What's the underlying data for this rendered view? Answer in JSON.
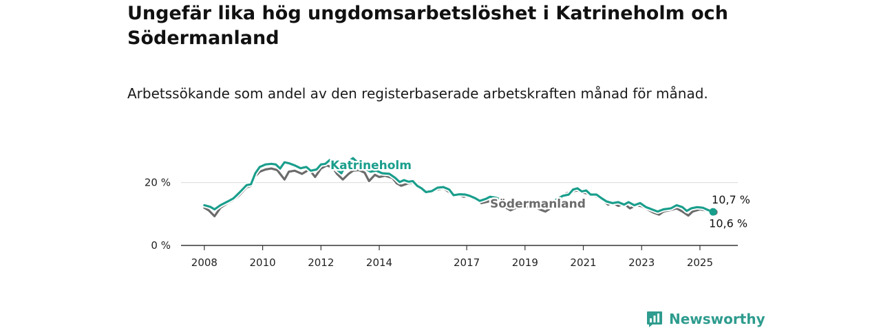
{
  "title": "Ungefär lika hög ungdomsarbetslöshet i Katrineholm och Södermanland",
  "subtitle": "Arbetssökande som andel av den registerbaserade arbetskraften månad för månad.",
  "logo": {
    "text": "Newsworthy",
    "icon": "newsworthy-logo-icon",
    "color": "#2e9c8e"
  },
  "colors": {
    "katrineholm": "#1a9e8c",
    "sodermanland": "#6b6b6b",
    "grid": "#d9d9d9",
    "axis": "#333333"
  },
  "chart_data": {
    "type": "line",
    "title": "Ungefär lika hög ungdomsarbetslöshet i Katrineholm och Södermanland",
    "subtitle": "Arbetssökande som andel av den registerbaserade arbetskraften månad för månad.",
    "xlabel": "",
    "ylabel": "",
    "x_unit": "year",
    "xlim": [
      2007.2,
      2026.3
    ],
    "ylim": [
      0,
      30
    ],
    "y_ticks": [
      {
        "value": 0,
        "label": "0 %"
      },
      {
        "value": 20,
        "label": "20 %"
      }
    ],
    "x_ticks": [
      {
        "value": 2008,
        "label": "2008"
      },
      {
        "value": 2010,
        "label": "2010"
      },
      {
        "value": 2012,
        "label": "2012"
      },
      {
        "value": 2014,
        "label": "2014"
      },
      {
        "value": 2017,
        "label": "2017"
      },
      {
        "value": 2019,
        "label": "2019"
      },
      {
        "value": 2021,
        "label": "2021"
      },
      {
        "value": 2023,
        "label": "2023"
      },
      {
        "value": 2025,
        "label": "2025"
      }
    ],
    "grid": "horizontal",
    "legend": "inline labels",
    "series": [
      {
        "name": "Södermanland",
        "color": "#6b6b6b",
        "label_position": "below-line",
        "end_label": "10,6 %",
        "points": [
          [
            2008.0,
            12.0
          ],
          [
            2008.15,
            11.2
          ],
          [
            2008.35,
            9.3
          ],
          [
            2008.55,
            12.0
          ],
          [
            2008.8,
            13.5
          ],
          [
            2009.0,
            14.5
          ],
          [
            2009.2,
            16.0
          ],
          [
            2009.45,
            18.5
          ],
          [
            2009.6,
            19.0
          ],
          [
            2009.75,
            22.0
          ],
          [
            2009.9,
            23.5
          ],
          [
            2010.1,
            24.2
          ],
          [
            2010.3,
            24.5
          ],
          [
            2010.5,
            24.0
          ],
          [
            2010.6,
            22.8
          ],
          [
            2010.75,
            21.0
          ],
          [
            2010.9,
            23.5
          ],
          [
            2011.1,
            23.8
          ],
          [
            2011.35,
            22.8
          ],
          [
            2011.6,
            24.2
          ],
          [
            2011.8,
            21.8
          ],
          [
            2012.0,
            24.5
          ],
          [
            2012.2,
            25.5
          ],
          [
            2012.4,
            24.8
          ],
          [
            2012.55,
            22.8
          ],
          [
            2012.75,
            21.0
          ],
          [
            2012.95,
            22.8
          ],
          [
            2013.1,
            23.8
          ],
          [
            2013.3,
            24.0
          ],
          [
            2013.5,
            23.2
          ],
          [
            2013.65,
            20.5
          ],
          [
            2013.85,
            22.5
          ],
          [
            2014.0,
            21.8
          ],
          [
            2014.2,
            22.2
          ],
          [
            2014.45,
            21.5
          ],
          [
            2014.6,
            19.8
          ],
          [
            2014.75,
            19.0
          ],
          [
            2015.0,
            19.8
          ],
          [
            2015.2,
            20.0
          ],
          [
            2015.4,
            18.2
          ],
          [
            2015.55,
            16.8
          ],
          [
            2015.75,
            17.5
          ],
          [
            2016.0,
            17.8
          ],
          [
            2016.2,
            18.2
          ],
          [
            2016.4,
            17.0
          ],
          [
            2016.55,
            15.8
          ],
          [
            2016.75,
            16.0
          ],
          [
            2016.9,
            15.5
          ],
          [
            2017.1,
            16.0
          ],
          [
            2017.3,
            14.8
          ],
          [
            2017.5,
            13.5
          ],
          [
            2017.75,
            14.0
          ],
          [
            2017.9,
            14.2
          ],
          [
            2018.2,
            12.8
          ],
          [
            2018.5,
            11.2
          ],
          [
            2018.7,
            12.0
          ],
          [
            2018.9,
            12.5
          ],
          [
            2019.1,
            12.2
          ],
          [
            2019.3,
            12.6
          ],
          [
            2019.5,
            11.5
          ],
          [
            2019.7,
            10.8
          ],
          [
            2019.9,
            12.0
          ],
          [
            2020.15,
            14.0
          ],
          [
            2020.4,
            16.5
          ],
          [
            2020.6,
            17.2
          ],
          [
            2020.8,
            17.5
          ],
          [
            2021.0,
            16.8
          ],
          [
            2021.15,
            16.5
          ],
          [
            2021.35,
            16.0
          ],
          [
            2021.55,
            15.2
          ],
          [
            2021.7,
            14.2
          ],
          [
            2021.85,
            13.0
          ],
          [
            2022.0,
            13.6
          ],
          [
            2022.2,
            12.6
          ],
          [
            2022.4,
            13.3
          ],
          [
            2022.6,
            11.8
          ],
          [
            2022.8,
            12.8
          ],
          [
            2023.0,
            12.5
          ],
          [
            2023.2,
            11.5
          ],
          [
            2023.4,
            10.5
          ],
          [
            2023.6,
            9.8
          ],
          [
            2023.75,
            10.8
          ],
          [
            2024.0,
            11.3
          ],
          [
            2024.2,
            11.8
          ],
          [
            2024.4,
            10.8
          ],
          [
            2024.6,
            9.5
          ],
          [
            2024.75,
            10.8
          ],
          [
            2025.0,
            11.5
          ],
          [
            2025.2,
            11.2
          ],
          [
            2025.4,
            10.8
          ],
          [
            2025.5,
            10.6
          ]
        ]
      },
      {
        "name": "Katrineholm",
        "color": "#1a9e8c",
        "label_position": "above-line",
        "end_label": "10,7 %",
        "points": [
          [
            2008.0,
            12.8
          ],
          [
            2008.2,
            12.3
          ],
          [
            2008.35,
            11.5
          ],
          [
            2008.55,
            12.8
          ],
          [
            2008.8,
            14.0
          ],
          [
            2009.0,
            15.0
          ],
          [
            2009.2,
            16.8
          ],
          [
            2009.45,
            19.2
          ],
          [
            2009.6,
            19.5
          ],
          [
            2009.75,
            23.0
          ],
          [
            2009.9,
            25.0
          ],
          [
            2010.1,
            25.8
          ],
          [
            2010.3,
            26.0
          ],
          [
            2010.45,
            25.8
          ],
          [
            2010.6,
            24.5
          ],
          [
            2010.75,
            26.5
          ],
          [
            2010.9,
            26.2
          ],
          [
            2011.1,
            25.5
          ],
          [
            2011.3,
            24.6
          ],
          [
            2011.5,
            25.0
          ],
          [
            2011.65,
            23.8
          ],
          [
            2011.85,
            24.2
          ],
          [
            2012.0,
            25.8
          ],
          [
            2012.15,
            26.0
          ],
          [
            2012.3,
            27.2
          ],
          [
            2012.5,
            24.5
          ],
          [
            2012.7,
            23.0
          ],
          [
            2012.9,
            26.5
          ],
          [
            2013.1,
            27.8
          ],
          [
            2013.3,
            26.0
          ],
          [
            2013.5,
            24.5
          ],
          [
            2013.7,
            23.5
          ],
          [
            2013.9,
            23.8
          ],
          [
            2014.1,
            23.0
          ],
          [
            2014.35,
            22.8
          ],
          [
            2014.55,
            21.5
          ],
          [
            2014.7,
            20.2
          ],
          [
            2014.85,
            20.8
          ],
          [
            2015.0,
            20.3
          ],
          [
            2015.15,
            20.5
          ],
          [
            2015.3,
            19.0
          ],
          [
            2015.45,
            18.2
          ],
          [
            2015.6,
            17.0
          ],
          [
            2015.8,
            17.3
          ],
          [
            2016.0,
            18.4
          ],
          [
            2016.2,
            18.6
          ],
          [
            2016.4,
            17.8
          ],
          [
            2016.55,
            16.0
          ],
          [
            2016.75,
            16.3
          ],
          [
            2016.95,
            16.2
          ],
          [
            2017.1,
            15.8
          ],
          [
            2017.3,
            15.0
          ],
          [
            2017.45,
            14.2
          ],
          [
            2017.65,
            14.8
          ],
          [
            2017.8,
            15.5
          ],
          [
            2018.0,
            15.2
          ],
          [
            2018.3,
            14.2
          ],
          [
            2018.5,
            12.6
          ],
          [
            2018.7,
            13.2
          ],
          [
            2018.9,
            14.0
          ],
          [
            2019.1,
            13.8
          ],
          [
            2019.3,
            13.6
          ],
          [
            2019.5,
            12.8
          ],
          [
            2019.7,
            12.5
          ],
          [
            2019.9,
            13.2
          ],
          [
            2020.1,
            14.8
          ],
          [
            2020.3,
            15.8
          ],
          [
            2020.5,
            16.2
          ],
          [
            2020.65,
            17.8
          ],
          [
            2020.8,
            18.2
          ],
          [
            2020.95,
            17.2
          ],
          [
            2021.1,
            17.5
          ],
          [
            2021.25,
            16.2
          ],
          [
            2021.45,
            16.2
          ],
          [
            2021.6,
            15.2
          ],
          [
            2021.8,
            14.0
          ],
          [
            2022.0,
            13.5
          ],
          [
            2022.2,
            13.8
          ],
          [
            2022.4,
            13.0
          ],
          [
            2022.55,
            13.8
          ],
          [
            2022.75,
            12.8
          ],
          [
            2022.95,
            13.5
          ],
          [
            2023.15,
            12.2
          ],
          [
            2023.35,
            11.5
          ],
          [
            2023.55,
            10.8
          ],
          [
            2023.75,
            11.5
          ],
          [
            2024.0,
            11.8
          ],
          [
            2024.2,
            12.8
          ],
          [
            2024.4,
            12.2
          ],
          [
            2024.55,
            11.0
          ],
          [
            2024.7,
            11.8
          ],
          [
            2024.9,
            12.2
          ],
          [
            2025.1,
            12.0
          ],
          [
            2025.3,
            11.2
          ],
          [
            2025.45,
            10.7
          ]
        ]
      }
    ]
  }
}
